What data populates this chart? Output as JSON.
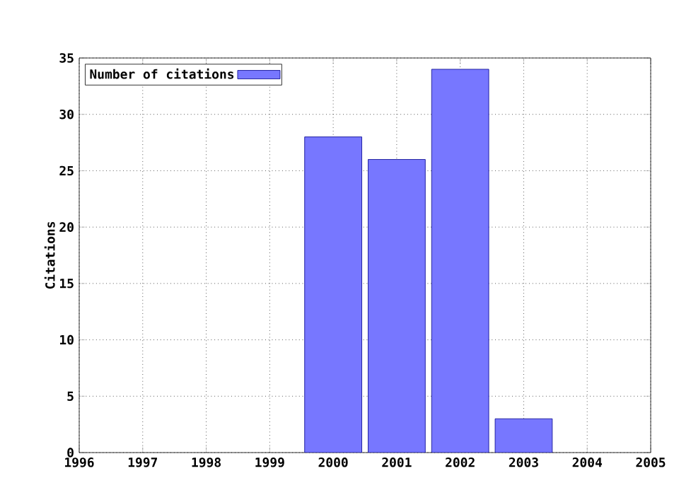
{
  "chart_data": {
    "type": "bar",
    "ylabel": "Citations",
    "x": [
      2000,
      2001,
      2002,
      2003
    ],
    "series": [
      {
        "name": "Number of citations",
        "color": "#7777ff",
        "values": [
          28,
          26,
          34,
          3
        ]
      }
    ],
    "xlim": [
      1996,
      2005
    ],
    "xticks": [
      1996,
      1997,
      1998,
      1999,
      2000,
      2001,
      2002,
      2003,
      2004,
      2005
    ],
    "ylim": [
      0,
      35
    ],
    "yticks": [
      0,
      5,
      10,
      15,
      20,
      25,
      30,
      35
    ],
    "grid": true,
    "legend": "top left"
  }
}
